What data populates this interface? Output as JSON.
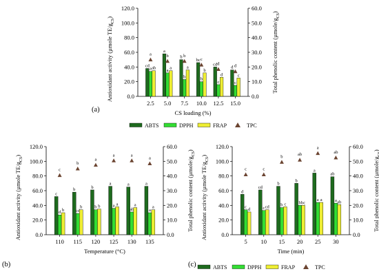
{
  "colors": {
    "ABTS": "#1e6b1e",
    "DPPH": "#33dd33",
    "FRAP": "#eeee33",
    "TPC": "#6b4431",
    "axis": "#000000"
  },
  "legend_labels": [
    "ABTS",
    "DPPH",
    "FRAP",
    "TPC"
  ],
  "chart_data": [
    {
      "type": "bar",
      "panel_label": "(a)",
      "xlabel": "CS loading (%)",
      "ylabel": "Antioxidant activity (µmole TE/g",
      "ylabel_sub": "CS",
      "ylabel_end": ")",
      "y2label": "Total phenolic content (µmole/g",
      "y2label_sub": "CS",
      "y2label_end": ")",
      "ylim": [
        0,
        120
      ],
      "y2lim": [
        0,
        60
      ],
      "yticks": [
        "0.0",
        "20.0",
        "40.0",
        "60.0",
        "80.0",
        "100.0",
        "120.0"
      ],
      "y2ticks": [
        "0.0",
        "10.0",
        "20.0",
        "30.0",
        "40.0",
        "50.0",
        "60.0"
      ],
      "categories": [
        "2.5",
        "5.0",
        "7.5",
        "10.0",
        "12.5",
        "15.0"
      ],
      "series": [
        {
          "name": "ABTS",
          "values": [
            38,
            58,
            50,
            46,
            40,
            36
          ],
          "labels": [
            "cd",
            "a",
            "b",
            "bc",
            "cd",
            "d"
          ]
        },
        {
          "name": "DPPH",
          "values": [
            34,
            32,
            23,
            20,
            16,
            15
          ],
          "labels": [
            "a",
            "a",
            "b",
            "b",
            "c",
            "c"
          ]
        },
        {
          "name": "FRAP",
          "values": [
            35,
            35,
            36,
            32,
            26,
            25
          ],
          "labels": [
            "ab",
            "a",
            "a",
            "b",
            "d",
            "c"
          ]
        }
      ],
      "tpc": {
        "name": "TPC",
        "values": [
          25,
          24,
          24,
          21.5,
          18.5,
          17
        ],
        "labels": [
          "a",
          "b",
          "b",
          "c",
          "d",
          "d"
        ]
      }
    },
    {
      "type": "bar",
      "panel_label": "(b)",
      "xlabel": "Temperature (°C)",
      "ylabel": "Antioxidant activity (µmole TE/g",
      "ylabel_sub": "CS",
      "ylabel_end": ")",
      "y2label": "Total phenolic content (µmole/g",
      "y2label_sub": "CS",
      "y2label_end": ")",
      "ylim": [
        0,
        120
      ],
      "y2lim": [
        0,
        60
      ],
      "yticks": [
        "0.0",
        "20.0",
        "40.0",
        "60.0",
        "80.0",
        "100.0",
        "120.0"
      ],
      "y2ticks": [
        "0.0",
        "10.0",
        "20.0",
        "30.0",
        "40.0",
        "50.0",
        "60.0"
      ],
      "categories": [
        "110",
        "115",
        "120",
        "125",
        "130",
        "135"
      ],
      "series": [
        {
          "name": "ABTS",
          "values": [
            52,
            58,
            61,
            66,
            65,
            66
          ],
          "labels": [
            "c",
            "b",
            "b",
            "a",
            "a",
            "a"
          ]
        },
        {
          "name": "DPPH",
          "values": [
            27,
            29,
            34,
            36,
            31,
            30
          ],
          "labels": [
            "d",
            "cd",
            "b",
            "a",
            "ab",
            "a"
          ]
        },
        {
          "name": "FRAP",
          "values": [
            30,
            34,
            35,
            38,
            37,
            34
          ],
          "labels": [
            "b",
            "b",
            "b",
            "a",
            "a",
            "a"
          ]
        }
      ],
      "tpc": {
        "name": "TPC",
        "values": [
          40.5,
          45,
          47.5,
          50.5,
          50.5,
          48.5
        ],
        "labels": [
          "c",
          "b",
          "a",
          "a",
          "a",
          "a"
        ]
      }
    },
    {
      "type": "bar",
      "panel_label": "(c)",
      "xlabel": "Time (min)",
      "ylabel": "Antioxidant activity (µmole TE/g",
      "ylabel_sub": "CS",
      "ylabel_end": ")",
      "y2label": "Total phenolic content (µmole/g",
      "y2label_sub": "CS",
      "y2label_end": ")",
      "ylim": [
        0,
        120
      ],
      "y2lim": [
        0,
        60
      ],
      "yticks": [
        "0.0",
        "20.0",
        "40.0",
        "60.0",
        "80.0",
        "100.0",
        "120.0"
      ],
      "y2ticks": [
        "0.0",
        "10.0",
        "20.0",
        "30.0",
        "40.0",
        "50.0",
        "60.0"
      ],
      "categories": [
        "5",
        "10",
        "15",
        "20",
        "25",
        "30"
      ],
      "series": [
        {
          "name": "ABTS",
          "values": [
            55,
            61,
            66,
            70,
            84,
            79
          ],
          "labels": [
            "d",
            "cd",
            "b",
            "b",
            "a",
            "ab"
          ]
        },
        {
          "name": "DPPH",
          "values": [
            34,
            33,
            37,
            40,
            44,
            43
          ],
          "labels": [
            "c",
            "c",
            "b",
            "b",
            "a",
            "a"
          ]
        },
        {
          "name": "FRAP",
          "values": [
            31,
            34,
            38,
            40,
            44,
            41
          ],
          "labels": [
            "d",
            "cd",
            "c",
            "bc",
            "a",
            "ab"
          ]
        }
      ],
      "tpc": {
        "name": "TPC",
        "values": [
          41,
          41,
          49.5,
          51,
          55.5,
          52.5
        ],
        "labels": [
          "c",
          "c",
          "b",
          "ab",
          "a",
          "ab"
        ]
      }
    }
  ]
}
